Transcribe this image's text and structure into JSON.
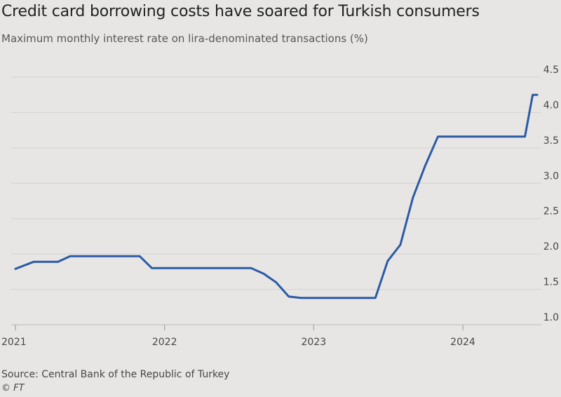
{
  "header": {
    "title": "Credit card borrowing costs have soared for Turkish consumers",
    "subtitle": "Maximum monthly interest rate on lira-denominated transactions (%)"
  },
  "footer": {
    "source": "Source: Central Bank of the Republic of Turkey",
    "credit": "© FT"
  },
  "colors": {
    "line": "#2b5ba6",
    "background": "#e7e6e4",
    "gridline": "#d3d1ce"
  },
  "chart_data": {
    "type": "line",
    "title": "Credit card borrowing costs have soared for Turkish consumers",
    "subtitle": "Maximum monthly interest rate on lira-denominated transactions (%)",
    "xlabel": "",
    "ylabel": "",
    "x_ticks": [
      "2021",
      "2022",
      "2023",
      "2024"
    ],
    "y_ticks": [
      "1.0",
      "1.5",
      "2.0",
      "2.5",
      "3.0",
      "3.5",
      "4.0",
      "4.5"
    ],
    "xlim": [
      "2021-01-01",
      "2024-07-01"
    ],
    "ylim": [
      1.0,
      4.5
    ],
    "y_axis_position": "right",
    "grid": true,
    "series": [
      {
        "x": [
          "2021-01-01",
          "2021-02-15",
          "2021-04-15",
          "2021-05-15",
          "2021-11-01",
          "2021-12-01",
          "2022-08-01",
          "2022-09-01",
          "2022-10-01",
          "2022-11-01",
          "2022-12-01",
          "2023-06-01",
          "2023-07-01",
          "2023-08-01",
          "2023-09-01",
          "2023-10-01",
          "2023-11-01",
          "2023-12-01",
          "2024-06-01",
          "2024-06-20",
          "2024-07-01"
        ],
        "y": [
          1.79,
          1.89,
          1.89,
          1.97,
          1.97,
          1.8,
          1.8,
          1.72,
          1.6,
          1.4,
          1.38,
          1.38,
          1.9,
          2.13,
          2.8,
          3.25,
          3.66,
          3.66,
          3.66,
          4.25,
          4.25
        ]
      }
    ]
  }
}
